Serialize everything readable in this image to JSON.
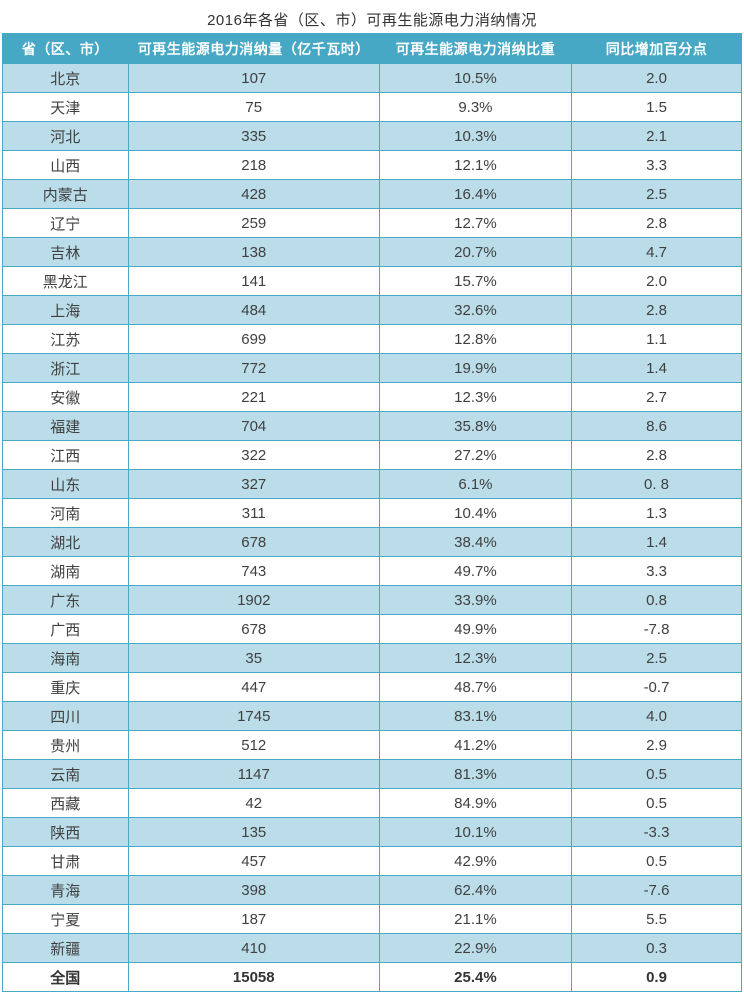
{
  "title": "2016年各省（区、市）可再生能源电力消纳情况",
  "colors": {
    "header_bg": "#46a8c5",
    "stripe_bg": "#badde9",
    "row_bg": "#ffffff",
    "border": "#4aa9c5",
    "header_text": "#ffffff",
    "body_text": "#404040"
  },
  "chart_data": {
    "type": "table",
    "title": "2016年各省（区、市）可再生能源电力消纳情况",
    "columns": [
      "省（区、市）",
      "可再生能源电力消纳量（亿千瓦时）",
      "可再生能源电力消纳比重",
      "同比增加百分点"
    ],
    "rows": [
      [
        "北京",
        "107",
        "10.5%",
        "2.0"
      ],
      [
        "天津",
        "75",
        "9.3%",
        "1.5"
      ],
      [
        "河北",
        "335",
        "10.3%",
        "2.1"
      ],
      [
        "山西",
        "218",
        "12.1%",
        "3.3"
      ],
      [
        "内蒙古",
        "428",
        "16.4%",
        "2.5"
      ],
      [
        "辽宁",
        "259",
        "12.7%",
        "2.8"
      ],
      [
        "吉林",
        "138",
        "20.7%",
        "4.7"
      ],
      [
        "黑龙江",
        "141",
        "15.7%",
        "2.0"
      ],
      [
        "上海",
        "484",
        "32.6%",
        "2.8"
      ],
      [
        "江苏",
        "699",
        "12.8%",
        "1.1"
      ],
      [
        "浙江",
        "772",
        "19.9%",
        "1.4"
      ],
      [
        "安徽",
        "221",
        "12.3%",
        "2.7"
      ],
      [
        "福建",
        "704",
        "35.8%",
        "8.6"
      ],
      [
        "江西",
        "322",
        "27.2%",
        "2.8"
      ],
      [
        "山东",
        "327",
        "6.1%",
        "0. 8"
      ],
      [
        "河南",
        "311",
        "10.4%",
        "1.3"
      ],
      [
        "湖北",
        "678",
        "38.4%",
        "1.4"
      ],
      [
        "湖南",
        "743",
        "49.7%",
        "3.3"
      ],
      [
        "广东",
        "1902",
        "33.9%",
        "0.8"
      ],
      [
        "广西",
        "678",
        "49.9%",
        "-7.8"
      ],
      [
        "海南",
        "35",
        "12.3%",
        "2.5"
      ],
      [
        "重庆",
        "447",
        "48.7%",
        "-0.7"
      ],
      [
        "四川",
        "1745",
        "83.1%",
        "4.0"
      ],
      [
        "贵州",
        "512",
        "41.2%",
        "2.9"
      ],
      [
        "云南",
        "1147",
        "81.3%",
        "0.5"
      ],
      [
        "西藏",
        "42",
        "84.9%",
        "0.5"
      ],
      [
        "陕西",
        "135",
        "10.1%",
        "-3.3"
      ],
      [
        "甘肃",
        "457",
        "42.9%",
        "0.5"
      ],
      [
        "青海",
        "398",
        "62.4%",
        "-7.6"
      ],
      [
        "宁夏",
        "187",
        "21.1%",
        "5.5"
      ],
      [
        "新疆",
        "410",
        "22.9%",
        "0.3"
      ]
    ],
    "total_row": [
      "全国",
      "15058",
      "25.4%",
      "0.9"
    ]
  }
}
